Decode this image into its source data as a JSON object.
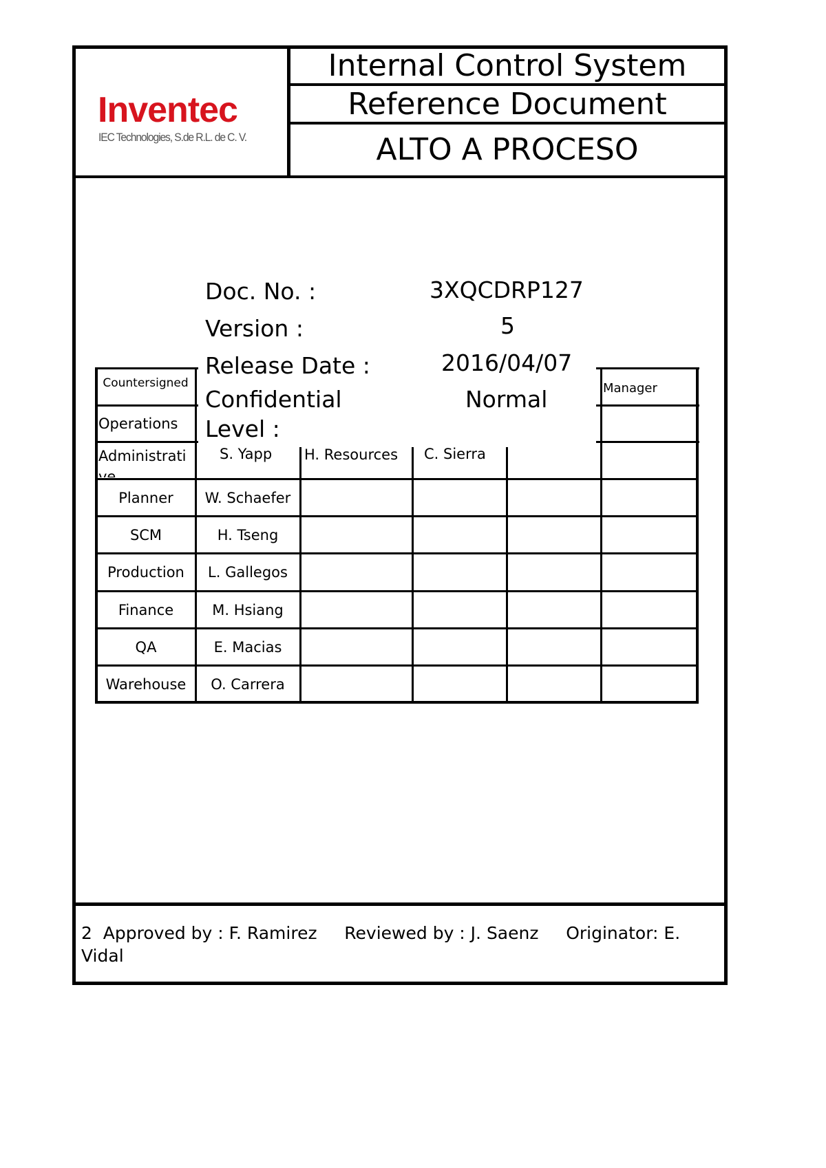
{
  "header": {
    "logo_text": "Inventec",
    "logo_subtitle": "IEC Technologies, S.de R.L. de C. V.",
    "brand_color": "#d7141e",
    "title_line1": "Internal Control System",
    "title_line2": "Reference Document",
    "title_line3": "ALTO A PROCESO"
  },
  "doc_info": {
    "doc_no_label": "Doc. No. :",
    "doc_no_value": "3XQCDRP127",
    "version_label": "Version :",
    "version_value": "5",
    "release_label": "Release Date :",
    "release_value": "2016/04/07",
    "conf_label_1": "Confidential",
    "conf_label_2": "Level :",
    "conf_value": "Normal"
  },
  "table": {
    "countersigned": "Countersigned",
    "manager": "Manager",
    "rows": [
      {
        "dept": "Operations",
        "name": ""
      },
      {
        "dept": "Administrative",
        "name": "S. Yapp",
        "dept2": "H. Resources",
        "name2": "C. Sierra"
      },
      {
        "dept": "Planner",
        "name": "W. Schaefer"
      },
      {
        "dept": "SCM",
        "name": "H. Tseng"
      },
      {
        "dept": "Production",
        "name": "L. Gallegos"
      },
      {
        "dept": "Finance",
        "name": "M. Hsiang"
      },
      {
        "dept": "QA",
        "name": "E. Macias"
      },
      {
        "dept": "Warehouse",
        "name": "O. Carrera"
      }
    ]
  },
  "footer": {
    "text": "2  Approved by : F. Ramirez     Reviewed by : J. Saenz     Originator: E. Vidal"
  }
}
